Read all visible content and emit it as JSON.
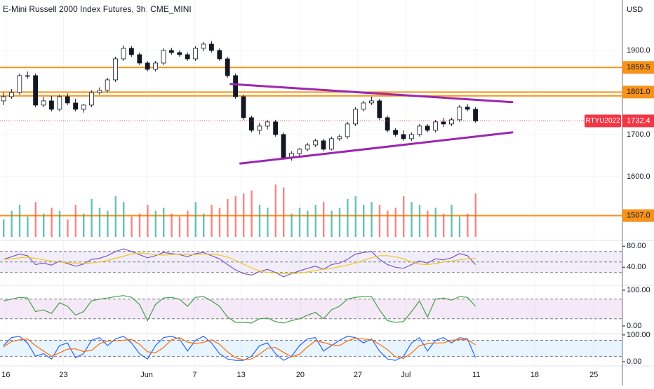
{
  "chart_data": [
    {
      "type": "candlestick",
      "title": "E-Mini Russell 2000 Index Futures, 3h, CME_MINI",
      "currency": "USD",
      "symbol": "RTYU2022",
      "last_price": {
        "value": 1732.4,
        "label": "1732.4"
      },
      "ylim": [
        1448,
        2020
      ],
      "yticks": [
        {
          "value": 1600,
          "label": "1600.0"
        },
        {
          "value": 1700,
          "label": "1700.0"
        },
        {
          "value": 1900,
          "label": "1900.0"
        }
      ],
      "grid": true,
      "up_color": "#ffffff",
      "down_color": "#131722",
      "level_color": "#f7931a",
      "trend_color": "#9c27b0",
      "price_color": "#f23645",
      "levels": [
        {
          "value": 1859.5,
          "label": "1859.5"
        },
        {
          "value": 1801,
          "label": "1801.0"
        },
        {
          "value": 1507,
          "label": "1507.0"
        }
      ],
      "unlabeled_levels": [
        1792
      ],
      "trendlines": [
        {
          "x": [
            28.4,
            63.6
          ],
          "y": [
            1820,
            1777
          ]
        },
        {
          "x": [
            29.6,
            63.6
          ],
          "y": [
            1631,
            1705
          ]
        }
      ],
      "open": [
        1780,
        1790,
        1800,
        1840,
        1840,
        1770,
        1780,
        1760,
        1790,
        1775,
        1760,
        1770,
        1800,
        1805,
        1830,
        1880,
        1905,
        1890,
        1870,
        1855,
        1870,
        1900,
        1895,
        1890,
        1880,
        1905,
        1915,
        1900,
        1880,
        1840,
        1790,
        1740,
        1710,
        1720,
        1730,
        1700,
        1645,
        1655,
        1665,
        1675,
        1685,
        1665,
        1690,
        1695,
        1725,
        1760,
        1775,
        1780,
        1740,
        1710,
        1700,
        1690,
        1700,
        1720,
        1710,
        1730,
        1725,
        1735,
        1765,
        1760
      ],
      "high": [
        1800,
        1808,
        1845,
        1850,
        1845,
        1790,
        1792,
        1795,
        1798,
        1785,
        1772,
        1805,
        1812,
        1835,
        1885,
        1912,
        1910,
        1895,
        1875,
        1875,
        1905,
        1906,
        1900,
        1895,
        1910,
        1920,
        1922,
        1905,
        1885,
        1845,
        1795,
        1745,
        1728,
        1735,
        1735,
        1705,
        1660,
        1668,
        1680,
        1690,
        1690,
        1695,
        1700,
        1730,
        1765,
        1780,
        1790,
        1785,
        1745,
        1715,
        1710,
        1705,
        1725,
        1725,
        1735,
        1740,
        1740,
        1770,
        1772,
        1765
      ],
      "low": [
        1770,
        1785,
        1795,
        1832,
        1765,
        1765,
        1755,
        1755,
        1770,
        1755,
        1752,
        1765,
        1795,
        1800,
        1825,
        1875,
        1885,
        1865,
        1850,
        1850,
        1865,
        1890,
        1885,
        1875,
        1875,
        1898,
        1895,
        1875,
        1835,
        1785,
        1735,
        1705,
        1700,
        1712,
        1695,
        1640,
        1638,
        1648,
        1660,
        1670,
        1660,
        1662,
        1685,
        1690,
        1720,
        1755,
        1770,
        1735,
        1705,
        1695,
        1685,
        1685,
        1695,
        1705,
        1705,
        1718,
        1720,
        1730,
        1755,
        1728
      ],
      "close": [
        1790,
        1800,
        1840,
        1840,
        1770,
        1780,
        1760,
        1790,
        1775,
        1760,
        1770,
        1800,
        1805,
        1830,
        1880,
        1905,
        1890,
        1870,
        1855,
        1870,
        1900,
        1895,
        1890,
        1880,
        1905,
        1915,
        1900,
        1880,
        1840,
        1790,
        1740,
        1710,
        1720,
        1730,
        1700,
        1645,
        1655,
        1665,
        1675,
        1685,
        1665,
        1690,
        1695,
        1725,
        1760,
        1775,
        1780,
        1740,
        1710,
        1700,
        1690,
        1700,
        1720,
        1710,
        1730,
        1725,
        1735,
        1765,
        1760,
        1732
      ]
    },
    {
      "type": "volume",
      "ylim": [
        0,
        100
      ],
      "up_color": "#26a69a",
      "down_color": "#ef5350",
      "values": [
        30,
        45,
        55,
        35,
        60,
        40,
        50,
        45,
        30,
        55,
        40,
        65,
        50,
        45,
        70,
        60,
        35,
        40,
        55,
        45,
        50,
        40,
        35,
        45,
        60,
        40,
        55,
        50,
        65,
        70,
        75,
        80,
        55,
        50,
        90,
        85,
        40,
        50,
        45,
        55,
        60,
        45,
        50,
        65,
        70,
        55,
        60,
        55,
        45,
        50,
        70,
        60,
        55,
        45,
        50,
        40,
        55,
        35,
        40,
        75
      ]
    },
    {
      "type": "line",
      "ylim": [
        7,
        91
      ],
      "yticks": [
        {
          "value": 80,
          "label": "80.00"
        },
        {
          "value": 40,
          "label": "40.00"
        }
      ],
      "levels": [
        70,
        50,
        30
      ],
      "band_color": "#7e57c2",
      "series": [
        {
          "color": "#7e57c2",
          "values": [
            55,
            60,
            65,
            62,
            45,
            48,
            44,
            52,
            47,
            42,
            46,
            55,
            57,
            62,
            70,
            75,
            70,
            64,
            58,
            62,
            68,
            66,
            64,
            60,
            66,
            68,
            62,
            56,
            45,
            35,
            28,
            25,
            32,
            36,
            30,
            22,
            28,
            33,
            38,
            42,
            36,
            45,
            48,
            55,
            65,
            68,
            70,
            55,
            45,
            40,
            38,
            45,
            52,
            48,
            56,
            54,
            58,
            66,
            62,
            45
          ]
        },
        {
          "color": "#f5c518",
          "values": [
            55,
            56,
            58,
            59,
            57,
            54,
            52,
            50,
            49,
            48,
            47,
            48,
            50,
            53,
            57,
            61,
            65,
            67,
            66,
            64,
            63,
            64,
            65,
            64,
            64,
            65,
            65,
            63,
            59,
            53,
            46,
            39,
            33,
            30,
            29,
            28,
            28,
            29,
            31,
            34,
            36,
            38,
            41,
            44,
            48,
            53,
            58,
            62,
            62,
            60,
            56,
            50,
            46,
            45,
            47,
            50,
            52,
            54,
            56,
            57
          ]
        }
      ]
    },
    {
      "type": "line",
      "ylim": [
        -19.6,
        111.8
      ],
      "yticks": [
        {
          "value": 100,
          "label": "100.00"
        },
        {
          "value": 0,
          "label": "0.00"
        }
      ],
      "levels": [
        75,
        20
      ],
      "band_color": "#9c27b0",
      "series": [
        {
          "color": "#43a047",
          "values": [
            70,
            75,
            80,
            78,
            40,
            45,
            35,
            65,
            55,
            30,
            40,
            70,
            75,
            78,
            82,
            85,
            80,
            60,
            15,
            60,
            78,
            80,
            75,
            55,
            80,
            82,
            70,
            55,
            25,
            10,
            10,
            8,
            20,
            22,
            12,
            8,
            15,
            20,
            30,
            38,
            20,
            45,
            55,
            75,
            80,
            82,
            82,
            45,
            15,
            10,
            12,
            40,
            70,
            25,
            75,
            78,
            72,
            82,
            80,
            55
          ]
        }
      ]
    },
    {
      "type": "line",
      "ylim": [
        -15.8,
        105
      ],
      "yticks": [
        {
          "value": 100,
          "label": "100.00"
        },
        {
          "value": 0,
          "label": "0.00"
        }
      ],
      "levels": [
        80,
        20
      ],
      "band_color": "#2196f3",
      "xlim": [
        -0.44,
        77.37
      ],
      "xticks": [
        {
          "value": 0.3,
          "label": "16"
        },
        {
          "value": 7.5,
          "label": "23"
        },
        {
          "value": 17.9,
          "label": "Jun"
        },
        {
          "value": 23.9,
          "label": "7"
        },
        {
          "value": 29.7,
          "label": "13"
        },
        {
          "value": 37.1,
          "label": "20"
        },
        {
          "value": 44.3,
          "label": "27"
        },
        {
          "value": 50.3,
          "label": "Jul"
        },
        {
          "value": 59.1,
          "label": "11"
        },
        {
          "value": 66.4,
          "label": "18"
        },
        {
          "value": 73.8,
          "label": "25"
        }
      ],
      "series": [
        {
          "color": "#2962ff",
          "values": [
            60,
            90,
            95,
            70,
            20,
            30,
            10,
            60,
            70,
            15,
            30,
            80,
            90,
            60,
            85,
            95,
            70,
            30,
            10,
            60,
            90,
            95,
            85,
            40,
            80,
            95,
            70,
            30,
            10,
            5,
            5,
            20,
            60,
            70,
            30,
            5,
            20,
            60,
            85,
            90,
            40,
            60,
            80,
            95,
            90,
            70,
            85,
            40,
            10,
            5,
            20,
            70,
            90,
            40,
            80,
            90,
            70,
            90,
            85,
            15
          ]
        },
        {
          "color": "#ff6d00",
          "values": [
            55,
            75,
            82,
            85,
            60,
            40,
            20,
            33,
            47,
            48,
            38,
            42,
            67,
            77,
            78,
            80,
            83,
            65,
            37,
            33,
            53,
            82,
            90,
            73,
            68,
            72,
            82,
            65,
            37,
            15,
            7,
            10,
            28,
            50,
            53,
            35,
            18,
            28,
            55,
            78,
            72,
            63,
            60,
            78,
            88,
            85,
            82,
            65,
            45,
            18,
            12,
            32,
            60,
            67,
            70,
            70,
            80,
            83,
            82,
            63
          ]
        }
      ]
    }
  ]
}
